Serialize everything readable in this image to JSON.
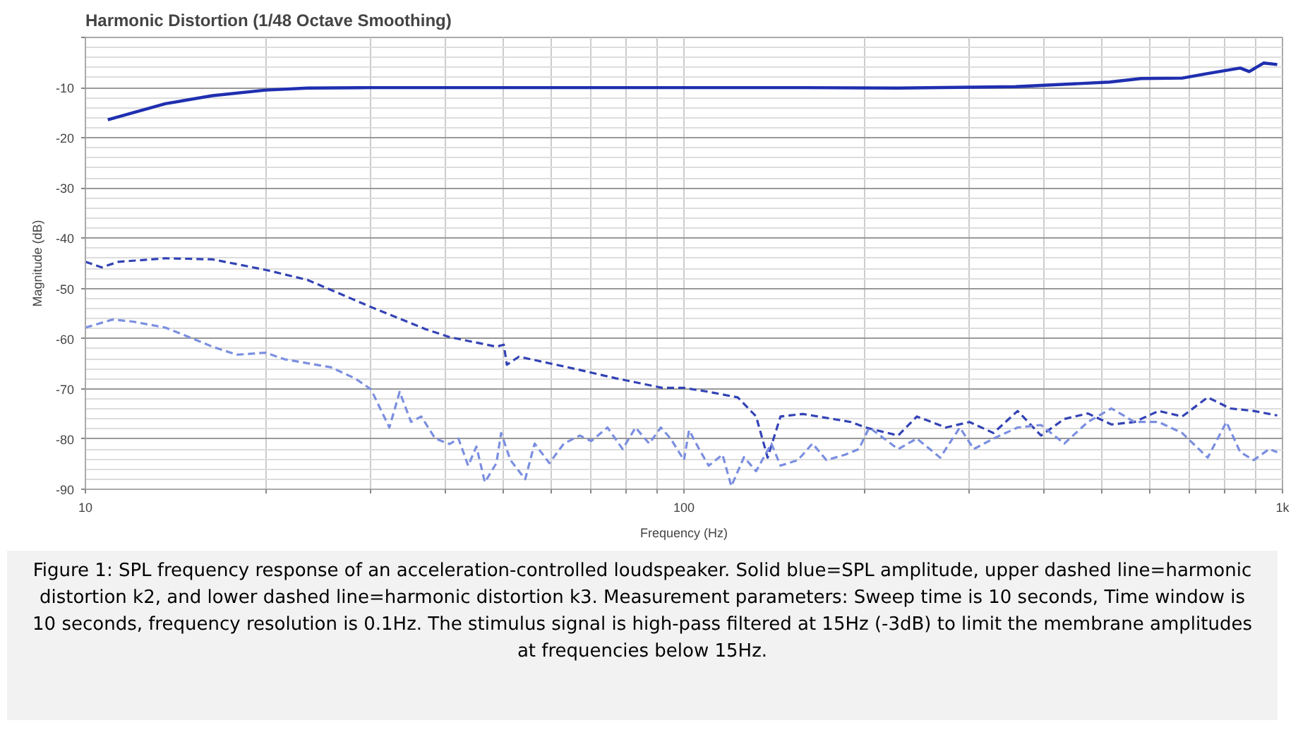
{
  "chart_data": {
    "type": "line",
    "title": "Harmonic Distortion (1/48 Octave Smoothing)",
    "xlabel": "Frequency (Hz)",
    "ylabel": "Magnitude (dB)",
    "log": "x",
    "xlim": [
      10,
      1000
    ],
    "ylim": [
      -90,
      0
    ],
    "xticks": [
      10,
      {
        "value": 20,
        "label": null
      },
      {
        "value": 30,
        "label": null
      },
      {
        "value": 40,
        "label": null
      },
      {
        "value": 50,
        "label": null
      },
      {
        "value": 60,
        "label": null
      },
      {
        "value": 70,
        "label": null
      },
      {
        "value": 80,
        "label": null
      },
      {
        "value": 90,
        "label": null
      },
      100,
      {
        "value": 200,
        "label": null
      },
      {
        "value": 300,
        "label": null
      },
      {
        "value": 400,
        "label": null
      },
      {
        "value": 500,
        "label": null
      },
      {
        "value": 600,
        "label": null
      },
      {
        "value": 700,
        "label": null
      },
      {
        "value": 800,
        "label": null
      },
      {
        "value": 900,
        "label": null
      },
      {
        "value": 1000,
        "label": "1k"
      }
    ],
    "yticks": [
      -90,
      -80,
      -70,
      -60,
      -50,
      -40,
      -30,
      -20,
      -10,
      {
        "value": 0,
        "label": null
      }
    ],
    "grid": true,
    "marker": "none",
    "series": [
      {
        "color": "#1f2fb0",
        "line_style": "solid",
        "x": [
          10.9,
          13.6,
          16.3,
          20,
          23.5,
          30,
          50,
          100,
          158,
          228,
          358,
          514,
          580,
          680,
          750,
          850,
          880,
          930,
          980
        ],
        "values": [
          -16.4,
          -13.2,
          -11.6,
          -10.5,
          -10.1,
          -10,
          -10,
          -10,
          -10,
          -10.1,
          -9.8,
          -8.9,
          -8.2,
          -8.1,
          -7.2,
          -6.1,
          -6.8,
          -5.1,
          -5.4
        ]
      },
      {
        "color": "#3343b5",
        "line_style": "dashed",
        "x": [
          10,
          10.65,
          11.35,
          13.6,
          16.3,
          20,
          23.5,
          30,
          37,
          40.6,
          48.6,
          50,
          50.6,
          53,
          64,
          77,
          92,
          100,
          110,
          123,
          132,
          138,
          145,
          158,
          190,
          201,
          228,
          245,
          274,
          300,
          329,
          361,
          395,
          432,
          473,
          518,
          566,
          621,
          680,
          750,
          818,
          895,
          980
        ],
        "values": [
          -44.7,
          -45.8,
          -44.7,
          -44,
          -44.2,
          -46.3,
          -48.3,
          -53.7,
          -58.1,
          -59.7,
          -61.6,
          -61.2,
          -65.2,
          -63.6,
          -65.7,
          -67.9,
          -69.8,
          -69.8,
          -70.6,
          -71.7,
          -75.5,
          -83.7,
          -75.5,
          -75,
          -76.6,
          -77.7,
          -79.3,
          -75.5,
          -77.7,
          -76.6,
          -78.8,
          -74.4,
          -79.3,
          -76,
          -74.9,
          -77.1,
          -76.6,
          -74.4,
          -75.5,
          -71.7,
          -73.9,
          -74.4,
          -75.3
        ]
      },
      {
        "color": "#7b8fe0",
        "line_style": "dashed",
        "x": [
          10,
          11.1,
          12,
          13.6,
          14.9,
          16.3,
          17.9,
          20,
          21.5,
          25.7,
          28.2,
          30,
          32.2,
          33.5,
          35,
          36.4,
          38.4,
          40.6,
          42,
          43.6,
          45,
          46.5,
          48.6,
          49.5,
          51.3,
          54.3,
          56.3,
          59.6,
          63,
          67,
          70,
          74.5,
          79,
          83,
          87.5,
          91.5,
          95,
          100,
          102,
          106,
          110,
          116,
          120,
          126,
          132,
          140,
          145,
          155,
          164,
          173,
          186,
          196,
          204,
          216,
          228,
          245,
          268,
          289,
          305,
          329,
          361,
          395,
          432,
          473,
          518,
          566,
          621,
          680,
          750,
          806,
          850,
          895,
          950,
          980
        ],
        "values": [
          -57.8,
          -56.2,
          -56.6,
          -57.8,
          -59.7,
          -61.6,
          -63.2,
          -62.8,
          -64.1,
          -65.7,
          -67.9,
          -70.1,
          -77.7,
          -70.6,
          -76.6,
          -75.5,
          -79.9,
          -81,
          -79.9,
          -85.3,
          -81.5,
          -88.6,
          -84.8,
          -78.8,
          -84.2,
          -88,
          -80.9,
          -84.8,
          -80.9,
          -79.3,
          -80.4,
          -77.7,
          -82,
          -77.7,
          -80.9,
          -77.7,
          -79.9,
          -84.2,
          -78.2,
          -82,
          -85.3,
          -83.1,
          -89.4,
          -83.6,
          -86.4,
          -80.9,
          -85.3,
          -84.2,
          -80.9,
          -84.2,
          -83.1,
          -82,
          -77.7,
          -79.9,
          -82,
          -79.9,
          -83.7,
          -77.7,
          -82,
          -79.9,
          -77.7,
          -77.2,
          -80.9,
          -76.6,
          -73.9,
          -76.6,
          -76.6,
          -78.8,
          -83.7,
          -76.6,
          -82.6,
          -84.2,
          -82,
          -82.6
        ]
      }
    ],
    "annotations": [
      "Figure 1: SPL frequency response of an acceleration-controlled loudspeaker. Solid blue=SPL amplitude, upper dashed line=harmonic distortion k2, and lower dashed line=harmonic distortion k3. Measurement parameters: Sweep time is 10 seconds, Time window is 10 seconds, frequency resolution is 0.1Hz. The stimulus signal is high-pass filtered at 15Hz (-3dB) to limit the membrane amplitudes at frequencies below 15Hz."
    ]
  }
}
